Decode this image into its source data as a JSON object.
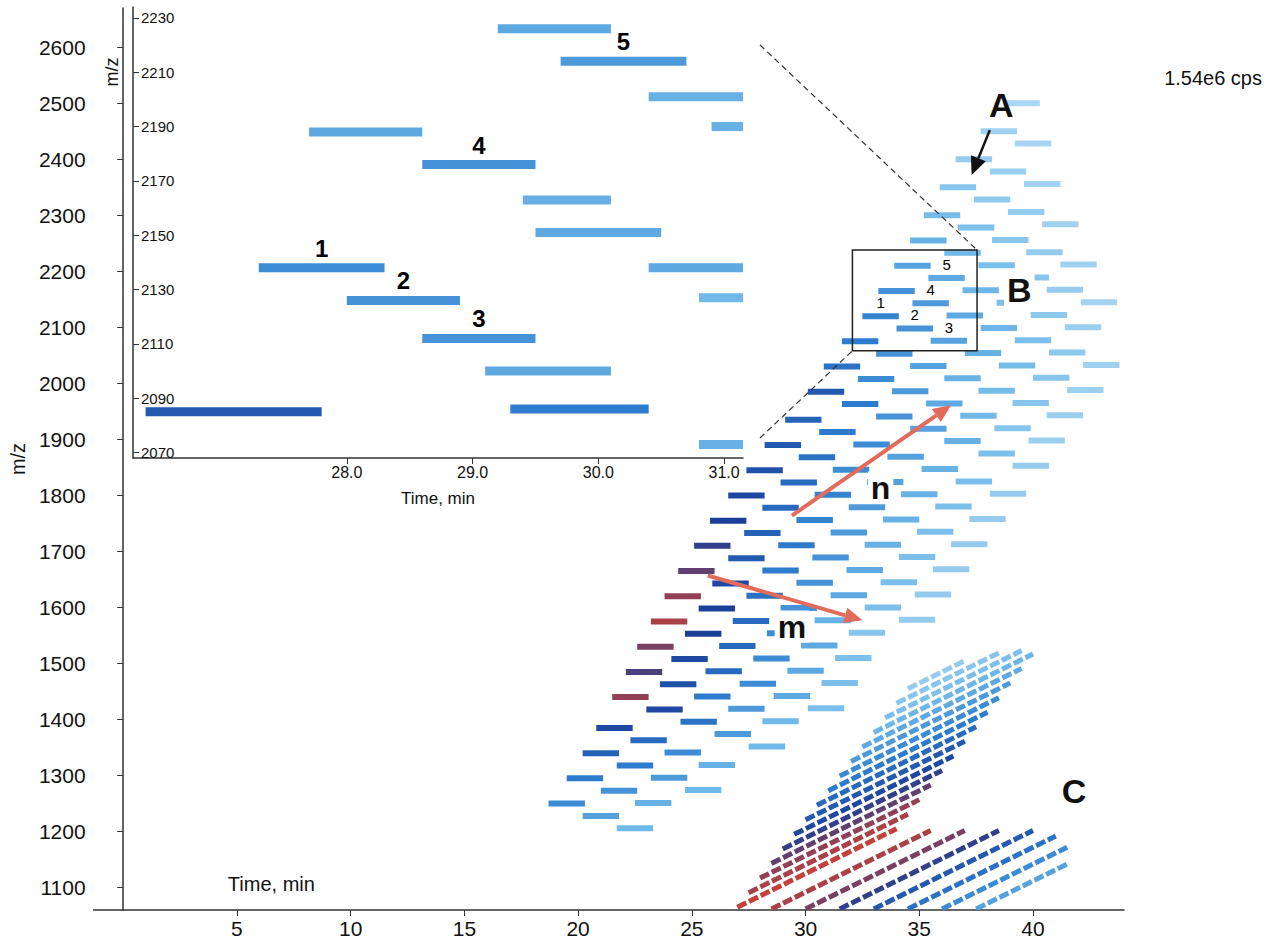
{
  "chart_data": [
    {
      "type": "heatmap",
      "xlabel": "Time, min",
      "ylabel": "m/z",
      "xlim": [
        -1.3,
        44
      ],
      "xticks": [
        5,
        10,
        15,
        20,
        25,
        30,
        35,
        40
      ],
      "ylim": [
        1060,
        2670
      ],
      "yticks": [
        1100,
        1200,
        1300,
        1400,
        1500,
        1600,
        1700,
        1800,
        1900,
        2000,
        2100,
        2200,
        2300,
        2400,
        2500,
        2600
      ],
      "zmax": {
        "value": 1540000,
        "label": "1.54e6 cps"
      },
      "annotations": [
        "A",
        "B",
        "C",
        "n",
        "m"
      ],
      "features": [
        [
          18.7,
          20.3,
          1250,
          700000
        ],
        [
          20.2,
          21.8,
          1228,
          550000
        ],
        [
          21.7,
          23.3,
          1206,
          400000
        ],
        [
          19.5,
          21.1,
          1295,
          800000
        ],
        [
          21.0,
          22.6,
          1273,
          650000
        ],
        [
          22.5,
          24.1,
          1251,
          450000
        ],
        [
          20.2,
          21.8,
          1340,
          950000
        ],
        [
          21.7,
          23.3,
          1318,
          800000
        ],
        [
          23.2,
          24.8,
          1296,
          600000
        ],
        [
          24.7,
          26.3,
          1274,
          400000
        ],
        [
          20.8,
          22.4,
          1385,
          1100000
        ],
        [
          22.3,
          23.9,
          1363,
          900000
        ],
        [
          23.8,
          25.4,
          1341,
          700000
        ],
        [
          25.3,
          26.9,
          1319,
          450000
        ],
        [
          21.5,
          23.1,
          1440,
          1400000
        ],
        [
          23.0,
          24.6,
          1418,
          1100000
        ],
        [
          24.5,
          26.1,
          1396,
          850000
        ],
        [
          26.0,
          27.6,
          1374,
          600000
        ],
        [
          27.5,
          29.1,
          1352,
          400000
        ],
        [
          22.1,
          23.7,
          1485,
          1250000
        ],
        [
          23.6,
          25.2,
          1463,
          1050000
        ],
        [
          25.1,
          26.7,
          1441,
          800000
        ],
        [
          26.6,
          28.2,
          1419,
          600000
        ],
        [
          28.1,
          29.7,
          1397,
          400000
        ],
        [
          22.6,
          24.2,
          1530,
          1350000
        ],
        [
          24.1,
          25.7,
          1508,
          1100000
        ],
        [
          25.6,
          27.2,
          1486,
          900000
        ],
        [
          27.1,
          28.7,
          1464,
          700000
        ],
        [
          28.6,
          30.2,
          1442,
          500000
        ],
        [
          30.1,
          31.7,
          1420,
          350000
        ],
        [
          23.2,
          24.8,
          1575,
          1450000
        ],
        [
          24.7,
          26.3,
          1553,
          1150000
        ],
        [
          26.2,
          27.8,
          1531,
          900000
        ],
        [
          27.7,
          29.3,
          1509,
          700000
        ],
        [
          29.2,
          30.8,
          1487,
          500000
        ],
        [
          30.7,
          32.3,
          1465,
          350000
        ],
        [
          23.8,
          25.4,
          1620,
          1400000
        ],
        [
          25.3,
          26.9,
          1598,
          1150000
        ],
        [
          26.8,
          28.4,
          1576,
          900000
        ],
        [
          28.3,
          29.9,
          1554,
          700000
        ],
        [
          29.8,
          31.4,
          1532,
          500000
        ],
        [
          31.3,
          32.9,
          1510,
          350000
        ],
        [
          24.4,
          26.0,
          1665,
          1300000
        ],
        [
          25.9,
          27.5,
          1643,
          1100000
        ],
        [
          27.4,
          29.0,
          1621,
          850000
        ],
        [
          28.9,
          30.5,
          1599,
          650000
        ],
        [
          30.4,
          32.0,
          1577,
          450000
        ],
        [
          31.9,
          33.5,
          1555,
          300000
        ],
        [
          25.1,
          26.7,
          1710,
          1200000
        ],
        [
          26.6,
          28.2,
          1688,
          1000000
        ],
        [
          28.1,
          29.7,
          1666,
          800000
        ],
        [
          29.6,
          31.2,
          1644,
          650000
        ],
        [
          31.1,
          32.7,
          1622,
          500000
        ],
        [
          32.6,
          34.2,
          1600,
          350000
        ],
        [
          34.1,
          35.7,
          1578,
          250000
        ],
        [
          25.8,
          27.4,
          1755,
          1150000
        ],
        [
          27.3,
          28.9,
          1733,
          950000
        ],
        [
          28.8,
          30.4,
          1711,
          800000
        ],
        [
          30.3,
          31.9,
          1689,
          650000
        ],
        [
          31.8,
          33.4,
          1667,
          500000
        ],
        [
          33.3,
          34.9,
          1645,
          350000
        ],
        [
          34.8,
          36.4,
          1623,
          250000
        ],
        [
          26.6,
          28.2,
          1800,
          1100000
        ],
        [
          28.1,
          29.7,
          1778,
          900000
        ],
        [
          29.6,
          31.2,
          1756,
          750000
        ],
        [
          31.1,
          32.7,
          1734,
          600000
        ],
        [
          32.6,
          34.2,
          1712,
          450000
        ],
        [
          34.1,
          35.7,
          1690,
          350000
        ],
        [
          35.6,
          37.2,
          1668,
          250000
        ],
        [
          27.4,
          29.0,
          1845,
          1050000
        ],
        [
          28.9,
          30.5,
          1823,
          900000
        ],
        [
          30.4,
          32.0,
          1801,
          750000
        ],
        [
          31.9,
          33.5,
          1779,
          600000
        ],
        [
          33.4,
          35.0,
          1757,
          450000
        ],
        [
          34.9,
          36.5,
          1735,
          350000
        ],
        [
          36.4,
          38.0,
          1713,
          250000
        ],
        [
          28.2,
          29.8,
          1890,
          1000000
        ],
        [
          29.7,
          31.3,
          1868,
          850000
        ],
        [
          31.2,
          32.8,
          1846,
          700000
        ],
        [
          32.7,
          34.3,
          1824,
          550000
        ],
        [
          34.2,
          35.8,
          1802,
          450000
        ],
        [
          35.7,
          37.3,
          1780,
          350000
        ],
        [
          37.2,
          38.8,
          1758,
          250000
        ],
        [
          29.1,
          30.7,
          1935,
          950000
        ],
        [
          30.6,
          32.2,
          1913,
          800000
        ],
        [
          32.1,
          33.7,
          1891,
          700000
        ],
        [
          33.6,
          35.2,
          1869,
          550000
        ],
        [
          35.1,
          36.7,
          1847,
          450000
        ],
        [
          36.6,
          38.2,
          1825,
          350000
        ],
        [
          38.1,
          39.7,
          1803,
          250000
        ],
        [
          30.1,
          31.7,
          1985,
          1000000
        ],
        [
          31.6,
          33.2,
          1963,
          800000
        ],
        [
          33.1,
          34.7,
          1941,
          650000
        ],
        [
          34.6,
          36.2,
          1919,
          550000
        ],
        [
          36.1,
          37.7,
          1897,
          450000
        ],
        [
          37.6,
          39.2,
          1875,
          350000
        ],
        [
          39.1,
          40.7,
          1853,
          250000
        ],
        [
          30.8,
          32.4,
          2030,
          850000
        ],
        [
          32.3,
          33.9,
          2008,
          700000
        ],
        [
          33.8,
          35.4,
          1986,
          600000
        ],
        [
          35.3,
          36.9,
          1964,
          500000
        ],
        [
          36.8,
          38.4,
          1942,
          400000
        ],
        [
          38.3,
          39.9,
          1920,
          300000
        ],
        [
          39.8,
          41.4,
          1898,
          220000
        ],
        [
          31.6,
          33.2,
          2075,
          800000
        ],
        [
          33.1,
          34.7,
          2053,
          650000
        ],
        [
          34.6,
          36.2,
          2031,
          550000
        ],
        [
          36.1,
          37.7,
          2009,
          450000
        ],
        [
          37.6,
          39.2,
          1987,
          380000
        ],
        [
          39.1,
          40.7,
          1965,
          300000
        ],
        [
          40.6,
          42.2,
          1943,
          220000
        ],
        [
          32.5,
          34.1,
          2120,
          750000,
          "1"
        ],
        [
          34.0,
          35.6,
          2098,
          650000,
          "2"
        ],
        [
          35.5,
          37.1,
          2076,
          550000,
          "3"
        ],
        [
          37.0,
          38.6,
          2054,
          450000
        ],
        [
          38.5,
          40.1,
          2032,
          380000
        ],
        [
          40.0,
          41.6,
          2010,
          300000
        ],
        [
          41.5,
          43.1,
          1988,
          220000
        ],
        [
          33.2,
          34.8,
          2165,
          650000
        ],
        [
          34.7,
          36.3,
          2143,
          600000,
          "4"
        ],
        [
          36.2,
          37.8,
          2121,
          500000
        ],
        [
          37.7,
          39.3,
          2099,
          420000
        ],
        [
          39.2,
          40.8,
          2077,
          350000
        ],
        [
          40.7,
          42.3,
          2055,
          280000
        ],
        [
          42.2,
          43.8,
          2033,
          200000
        ],
        [
          33.9,
          35.5,
          2210,
          550000
        ],
        [
          35.4,
          37.0,
          2188,
          500000,
          "5"
        ],
        [
          36.9,
          38.5,
          2166,
          420000
        ],
        [
          38.4,
          40.0,
          2144,
          350000
        ],
        [
          39.9,
          41.5,
          2122,
          280000
        ],
        [
          41.4,
          43.0,
          2100,
          220000
        ],
        [
          34.6,
          36.2,
          2255,
          450000
        ],
        [
          36.1,
          37.7,
          2233,
          400000
        ],
        [
          37.6,
          39.2,
          2211,
          350000
        ],
        [
          39.1,
          40.7,
          2189,
          300000
        ],
        [
          40.6,
          42.2,
          2167,
          240000
        ],
        [
          42.1,
          43.7,
          2145,
          180000
        ],
        [
          35.2,
          36.8,
          2300,
          380000
        ],
        [
          36.7,
          38.3,
          2278,
          340000
        ],
        [
          38.2,
          39.8,
          2256,
          300000
        ],
        [
          39.7,
          41.3,
          2234,
          250000
        ],
        [
          41.2,
          42.8,
          2212,
          200000
        ],
        [
          35.9,
          37.5,
          2350,
          300000
        ],
        [
          37.4,
          39.0,
          2328,
          270000
        ],
        [
          38.9,
          40.5,
          2306,
          240000
        ],
        [
          40.4,
          42.0,
          2284,
          200000
        ],
        [
          36.6,
          38.2,
          2400,
          250000
        ],
        [
          38.1,
          39.7,
          2378,
          220000
        ],
        [
          39.6,
          41.2,
          2356,
          180000
        ],
        [
          37.7,
          39.3,
          2450,
          200000
        ],
        [
          39.2,
          40.8,
          2428,
          170000
        ],
        [
          38.7,
          40.3,
          2500,
          160000
        ]
      ],
      "stripes": [
        [
          27.0,
          1065,
          34.0,
          1205,
          1500000
        ],
        [
          27.5,
          1091,
          34.5,
          1231,
          1450000
        ],
        [
          28.0,
          1117,
          35.0,
          1257,
          1400000
        ],
        [
          28.5,
          1143,
          35.5,
          1283,
          1300000
        ],
        [
          29.0,
          1169,
          36.0,
          1309,
          1200000
        ],
        [
          29.5,
          1195,
          36.5,
          1335,
          1100000
        ],
        [
          30.0,
          1221,
          37.0,
          1361,
          1000000
        ],
        [
          30.5,
          1247,
          37.5,
          1387,
          900000
        ],
        [
          31.0,
          1273,
          38.0,
          1413,
          800000
        ],
        [
          31.5,
          1299,
          38.5,
          1439,
          700000
        ],
        [
          32.0,
          1325,
          39.0,
          1465,
          600000
        ],
        [
          32.5,
          1351,
          39.5,
          1491,
          500000
        ],
        [
          33.0,
          1377,
          40.0,
          1517,
          420000
        ],
        [
          33.5,
          1403,
          39.5,
          1523,
          350000
        ],
        [
          34.0,
          1429,
          38.5,
          1519,
          300000
        ],
        [
          34.5,
          1455,
          37.0,
          1505,
          250000
        ],
        [
          28.5,
          1062,
          35.5,
          1202,
          1450000
        ],
        [
          30.0,
          1062,
          37.0,
          1202,
          1350000
        ],
        [
          31.5,
          1062,
          38.5,
          1202,
          1200000
        ],
        [
          33.0,
          1062,
          40.0,
          1202,
          1000000
        ],
        [
          34.5,
          1062,
          41.0,
          1192,
          850000
        ],
        [
          36.0,
          1062,
          41.5,
          1172,
          700000
        ],
        [
          37.5,
          1062,
          41.5,
          1142,
          550000
        ]
      ]
    },
    {
      "type": "heatmap",
      "xlabel": "Time, min",
      "ylabel": "m/z",
      "xlim": [
        26.3,
        31.15
      ],
      "xticks": [
        {
          "value": 28,
          "label": "28.0"
        },
        {
          "value": 29,
          "label": "29.0"
        },
        {
          "value": 30,
          "label": "30.0"
        },
        {
          "value": 31,
          "label": "31.0"
        }
      ],
      "ylim": [
        2068,
        2234
      ],
      "yticks": [
        2070,
        2090,
        2110,
        2130,
        2150,
        2170,
        2190,
        2210,
        2230
      ],
      "features": [
        [
          29.2,
          30.1,
          2226,
          500000
        ],
        [
          29.7,
          30.7,
          2214,
          600000,
          "5"
        ],
        [
          30.4,
          31.15,
          2201,
          450000
        ],
        [
          30.9,
          31.2,
          2190,
          450000
        ],
        [
          27.7,
          28.6,
          2188,
          500000
        ],
        [
          28.6,
          29.5,
          2176,
          650000,
          "4"
        ],
        [
          29.4,
          30.1,
          2163,
          450000
        ],
        [
          29.5,
          30.5,
          2151,
          500000
        ],
        [
          30.4,
          31.2,
          2138,
          500000
        ],
        [
          27.3,
          28.3,
          2138,
          700000,
          "1"
        ],
        [
          28.0,
          28.9,
          2126,
          650000,
          "2"
        ],
        [
          28.6,
          29.5,
          2112,
          650000,
          "3"
        ],
        [
          30.8,
          31.2,
          2127,
          400000
        ],
        [
          29.1,
          30.1,
          2100,
          500000
        ],
        [
          26.4,
          27.8,
          2085,
          1000000
        ],
        [
          29.3,
          30.4,
          2086,
          800000
        ],
        [
          30.8,
          31.2,
          2073,
          450000
        ]
      ]
    }
  ]
}
